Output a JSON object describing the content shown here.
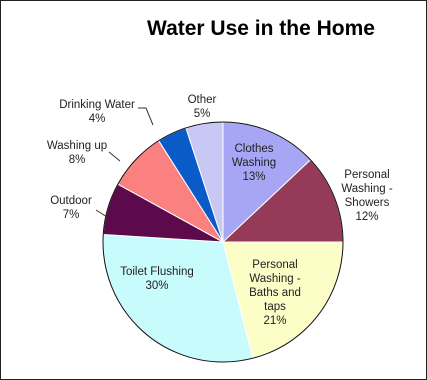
{
  "chart_data": {
    "type": "pie",
    "title": "Water Use in the Home",
    "slices": [
      {
        "label_lines": [
          "Clothes",
          "Washing",
          "13%"
        ],
        "name": "Clothes Washing",
        "value": 13,
        "color": "#a6a6f5",
        "label_pos": "inside"
      },
      {
        "label_lines": [
          "Personal",
          "Washing -",
          "Showers",
          "12%"
        ],
        "name": "Personal Washing - Showers",
        "value": 12,
        "color": "#963a5a",
        "label_pos": "outside-right"
      },
      {
        "label_lines": [
          "Personal",
          "Washing -",
          "Baths and",
          "taps",
          "21%"
        ],
        "name": "Personal Washing - Baths and taps",
        "value": 21,
        "color": "#fdfdc8",
        "label_pos": "inside"
      },
      {
        "label_lines": [
          "Toilet Flushing",
          "30%"
        ],
        "name": "Toilet Flushing",
        "value": 30,
        "color": "#c8fbfb",
        "label_pos": "inside"
      },
      {
        "label_lines": [
          "Outdoor",
          "7%"
        ],
        "name": "Outdoor",
        "value": 7,
        "color": "#5c0a4c",
        "label_pos": "outside-left"
      },
      {
        "label_lines": [
          "Washing up",
          "8%"
        ],
        "name": "Washing up",
        "value": 8,
        "color": "#fb8080",
        "label_pos": "outside-left"
      },
      {
        "label_lines": [
          "Drinking Water",
          "4%"
        ],
        "name": "Drinking Water",
        "value": 4,
        "color": "#0a5ac8",
        "label_pos": "outside-left"
      },
      {
        "label_lines": [
          "Other",
          "5%"
        ],
        "name": "Other",
        "value": 5,
        "color": "#c8c8f5",
        "label_pos": "outside-top"
      }
    ],
    "start_angle_deg": 0,
    "direction": "clockwise",
    "legend": "none"
  }
}
